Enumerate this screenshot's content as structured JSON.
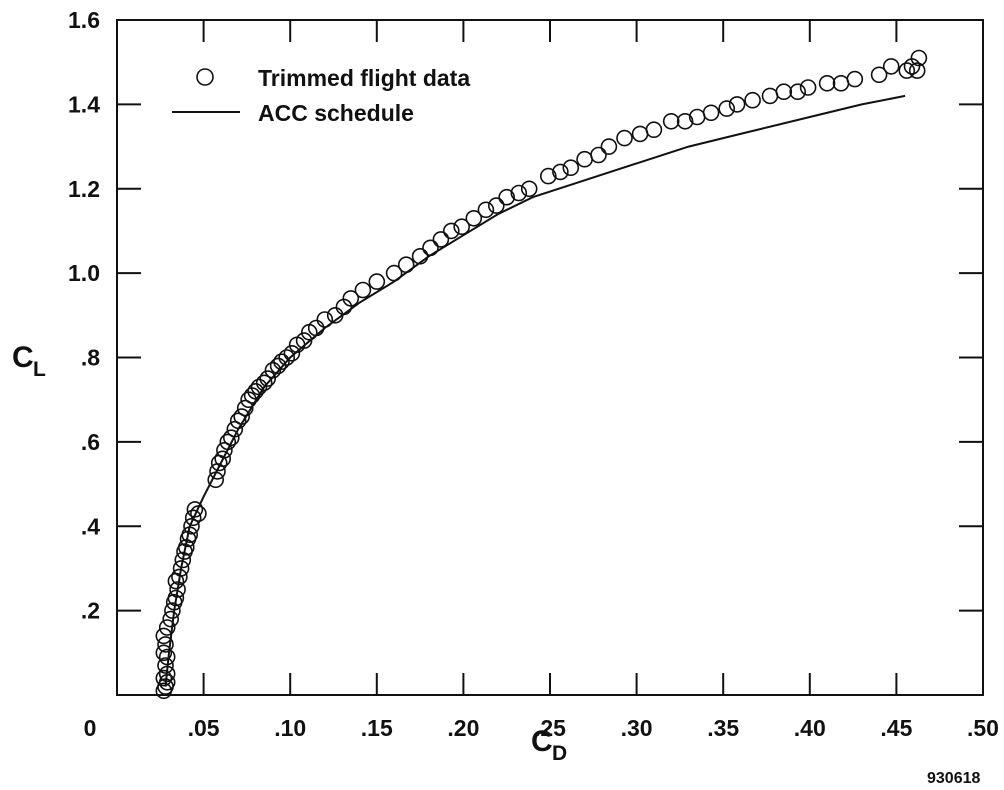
{
  "chart_data": {
    "type": "scatter",
    "x_axis": {
      "title_main": "C",
      "title_sub": "D",
      "ticks": [
        0,
        0.05,
        0.1,
        0.15,
        0.2,
        0.25,
        0.3,
        0.35,
        0.4,
        0.45,
        0.5
      ],
      "tick_labels": [
        "0",
        ".05",
        ".10",
        ".15",
        ".20",
        ".25",
        ".30",
        ".35",
        ".40",
        ".45",
        ".50"
      ],
      "range": [
        0,
        0.5
      ]
    },
    "y_axis": {
      "title_main": "C",
      "title_sub": "L",
      "ticks": [
        0.2,
        0.4,
        0.6,
        0.8,
        1.0,
        1.2,
        1.4,
        1.6
      ],
      "tick_labels": [
        ".2",
        ".4",
        ".6",
        ".8",
        "1.0",
        "1.2",
        "1.4",
        "1.6"
      ],
      "range": [
        0,
        1.6
      ]
    },
    "grid": false,
    "legend_position": "top-left",
    "series": [
      {
        "name": "Trimmed flight data",
        "marker": "open-circle",
        "points": [
          [
            0.027,
            0.01
          ],
          [
            0.028,
            0.02
          ],
          [
            0.029,
            0.03
          ],
          [
            0.027,
            0.04
          ],
          [
            0.029,
            0.05
          ],
          [
            0.028,
            0.07
          ],
          [
            0.029,
            0.09
          ],
          [
            0.027,
            0.1
          ],
          [
            0.028,
            0.12
          ],
          [
            0.027,
            0.14
          ],
          [
            0.029,
            0.16
          ],
          [
            0.031,
            0.18
          ],
          [
            0.032,
            0.2
          ],
          [
            0.033,
            0.22
          ],
          [
            0.034,
            0.23
          ],
          [
            0.035,
            0.25
          ],
          [
            0.034,
            0.27
          ],
          [
            0.036,
            0.28
          ],
          [
            0.037,
            0.3
          ],
          [
            0.038,
            0.32
          ],
          [
            0.039,
            0.34
          ],
          [
            0.04,
            0.35
          ],
          [
            0.041,
            0.37
          ],
          [
            0.042,
            0.38
          ],
          [
            0.043,
            0.4
          ],
          [
            0.044,
            0.42
          ],
          [
            0.045,
            0.44
          ],
          [
            0.047,
            0.43
          ],
          [
            0.057,
            0.51
          ],
          [
            0.058,
            0.53
          ],
          [
            0.059,
            0.55
          ],
          [
            0.061,
            0.56
          ],
          [
            0.062,
            0.58
          ],
          [
            0.064,
            0.6
          ],
          [
            0.066,
            0.61
          ],
          [
            0.068,
            0.63
          ],
          [
            0.07,
            0.65
          ],
          [
            0.072,
            0.66
          ],
          [
            0.074,
            0.68
          ],
          [
            0.076,
            0.7
          ],
          [
            0.078,
            0.71
          ],
          [
            0.08,
            0.72
          ],
          [
            0.082,
            0.73
          ],
          [
            0.085,
            0.74
          ],
          [
            0.087,
            0.75
          ],
          [
            0.09,
            0.77
          ],
          [
            0.093,
            0.78
          ],
          [
            0.095,
            0.79
          ],
          [
            0.098,
            0.8
          ],
          [
            0.101,
            0.81
          ],
          [
            0.104,
            0.83
          ],
          [
            0.108,
            0.84
          ],
          [
            0.111,
            0.86
          ],
          [
            0.115,
            0.87
          ],
          [
            0.12,
            0.89
          ],
          [
            0.126,
            0.9
          ],
          [
            0.131,
            0.92
          ],
          [
            0.135,
            0.94
          ],
          [
            0.142,
            0.96
          ],
          [
            0.15,
            0.98
          ],
          [
            0.16,
            1.0
          ],
          [
            0.167,
            1.02
          ],
          [
            0.175,
            1.04
          ],
          [
            0.181,
            1.06
          ],
          [
            0.187,
            1.08
          ],
          [
            0.193,
            1.1
          ],
          [
            0.199,
            1.11
          ],
          [
            0.206,
            1.13
          ],
          [
            0.213,
            1.15
          ],
          [
            0.219,
            1.16
          ],
          [
            0.225,
            1.18
          ],
          [
            0.232,
            1.19
          ],
          [
            0.238,
            1.2
          ],
          [
            0.249,
            1.23
          ],
          [
            0.256,
            1.24
          ],
          [
            0.262,
            1.25
          ],
          [
            0.27,
            1.27
          ],
          [
            0.278,
            1.28
          ],
          [
            0.284,
            1.3
          ],
          [
            0.293,
            1.32
          ],
          [
            0.302,
            1.33
          ],
          [
            0.31,
            1.34
          ],
          [
            0.32,
            1.36
          ],
          [
            0.328,
            1.36
          ],
          [
            0.335,
            1.37
          ],
          [
            0.343,
            1.38
          ],
          [
            0.352,
            1.39
          ],
          [
            0.358,
            1.4
          ],
          [
            0.367,
            1.41
          ],
          [
            0.377,
            1.42
          ],
          [
            0.385,
            1.43
          ],
          [
            0.393,
            1.43
          ],
          [
            0.399,
            1.44
          ],
          [
            0.41,
            1.45
          ],
          [
            0.418,
            1.45
          ],
          [
            0.426,
            1.46
          ],
          [
            0.44,
            1.47
          ],
          [
            0.447,
            1.49
          ],
          [
            0.456,
            1.48
          ],
          [
            0.459,
            1.49
          ],
          [
            0.463,
            1.51
          ],
          [
            0.462,
            1.48
          ]
        ]
      },
      {
        "name": "ACC schedule",
        "marker": "line",
        "points": [
          [
            0.028,
            0.02
          ],
          [
            0.03,
            0.1
          ],
          [
            0.033,
            0.2
          ],
          [
            0.037,
            0.3
          ],
          [
            0.042,
            0.4
          ],
          [
            0.05,
            0.47
          ],
          [
            0.06,
            0.55
          ],
          [
            0.07,
            0.63
          ],
          [
            0.085,
            0.73
          ],
          [
            0.1,
            0.8
          ],
          [
            0.12,
            0.87
          ],
          [
            0.14,
            0.93
          ],
          [
            0.16,
            0.98
          ],
          [
            0.18,
            1.04
          ],
          [
            0.2,
            1.09
          ],
          [
            0.22,
            1.14
          ],
          [
            0.24,
            1.18
          ],
          [
            0.27,
            1.22
          ],
          [
            0.3,
            1.26
          ],
          [
            0.33,
            1.3
          ],
          [
            0.36,
            1.33
          ],
          [
            0.4,
            1.37
          ],
          [
            0.43,
            1.4
          ],
          [
            0.455,
            1.42
          ]
        ]
      }
    ],
    "annotation": "930618"
  }
}
